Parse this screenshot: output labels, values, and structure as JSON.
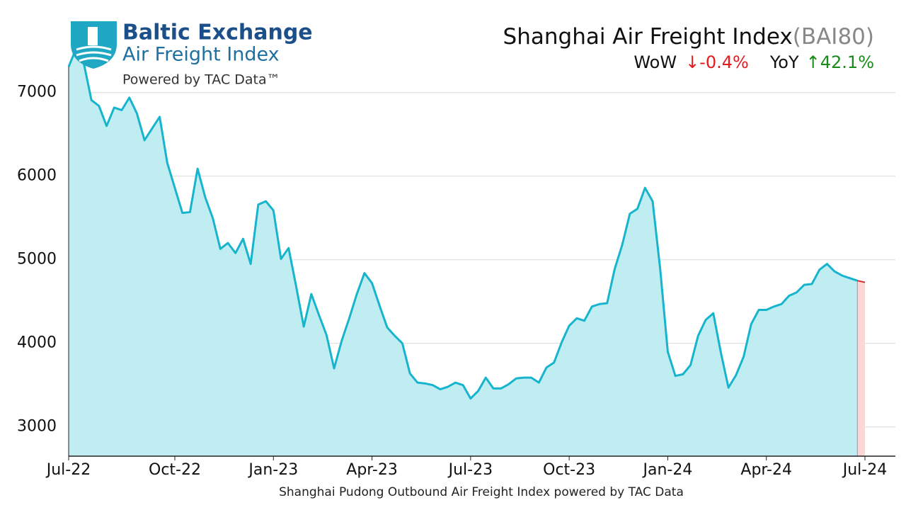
{
  "logo": {
    "name": "Baltic Exchange",
    "product": "Air Freight Index",
    "tagline": "Powered by TAC Data™"
  },
  "chart_data": {
    "type": "line",
    "title": "Shanghai Air Freight Index",
    "title_code": "(BAI80)",
    "wow_label": "WoW",
    "wow_value": "↓-0.4%",
    "yoy_label": "YoY",
    "yoy_value": "↑42.1%",
    "x_label": "Shanghai Pudong Outbound Air Freight Index powered by TAC Data",
    "categories": [
      "Jul-22",
      null,
      null,
      null,
      null,
      null,
      null,
      null,
      null,
      null,
      null,
      null,
      null,
      null,
      "Oct-22",
      null,
      null,
      null,
      null,
      null,
      null,
      null,
      null,
      null,
      null,
      null,
      null,
      "Jan-23",
      null,
      null,
      null,
      null,
      null,
      null,
      null,
      null,
      null,
      null,
      null,
      null,
      "Apr-23",
      null,
      null,
      null,
      null,
      null,
      null,
      null,
      null,
      null,
      null,
      null,
      null,
      "Jul-23",
      null,
      null,
      null,
      null,
      null,
      null,
      null,
      null,
      null,
      null,
      null,
      null,
      "Oct-23",
      null,
      null,
      null,
      null,
      null,
      null,
      null,
      null,
      null,
      null,
      null,
      null,
      "Jan-24",
      null,
      null,
      null,
      null,
      null,
      null,
      null,
      null,
      null,
      null,
      null,
      null,
      "Apr-24",
      null,
      null,
      null,
      null,
      null,
      null,
      null,
      null,
      null,
      null,
      null,
      null,
      "Jul-24"
    ],
    "values": [
      7310,
      7530,
      7350,
      6910,
      6840,
      6600,
      6820,
      6790,
      6940,
      6750,
      6430,
      6570,
      6710,
      6160,
      5860,
      5560,
      5570,
      6090,
      5750,
      5500,
      5130,
      5200,
      5080,
      5250,
      4950,
      5660,
      5700,
      5590,
      5010,
      5140,
      4680,
      4200,
      4590,
      4340,
      4100,
      3700,
      4030,
      4300,
      4590,
      4840,
      4720,
      4450,
      4190,
      4090,
      4000,
      3640,
      3530,
      3520,
      3500,
      3450,
      3480,
      3530,
      3500,
      3340,
      3430,
      3590,
      3460,
      3460,
      3510,
      3580,
      3590,
      3590,
      3530,
      3710,
      3770,
      4010,
      4210,
      4300,
      4270,
      4440,
      4470,
      4480,
      4890,
      5180,
      5550,
      5610,
      5860,
      5700,
      4890,
      3900,
      3610,
      3630,
      3740,
      4090,
      4280,
      4360,
      3890,
      3470,
      3620,
      3840,
      4230,
      4400,
      4400,
      4440,
      4470,
      4570,
      4610,
      4700,
      4710,
      4880,
      4950,
      4860,
      4810,
      4780,
      4750,
      4730
    ],
    "color": "#17b5cd",
    "fill_color": "#bdecf1",
    "latest_color": "#d62728",
    "latest_fill": "#fdd7d8",
    "ylim": [
      2650,
      7650
    ],
    "yticks": [
      3000,
      4000,
      5000,
      6000,
      7000
    ],
    "grid": true
  }
}
